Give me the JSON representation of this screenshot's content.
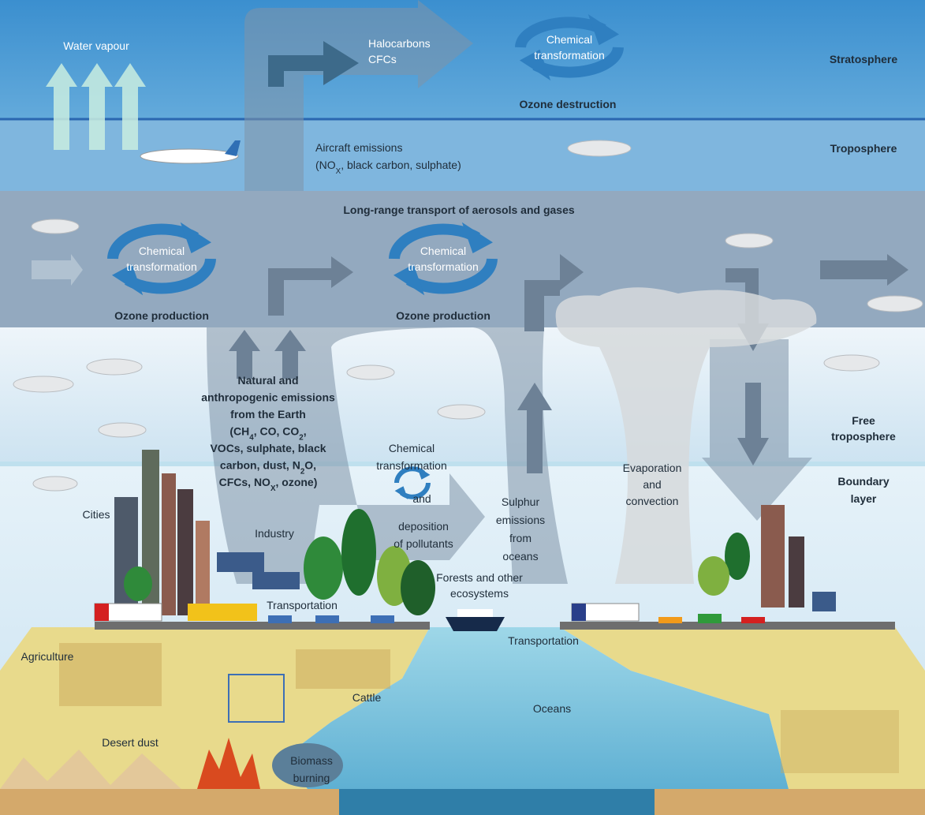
{
  "labels": {
    "water_vapour": [
      "Water vapour"
    ],
    "halocarbons": [
      "Halocarbons",
      "CFCs"
    ],
    "strat_chemical": [
      "Chemical",
      "transformation"
    ],
    "ozone_destruction": [
      "Ozone destruction"
    ],
    "stratosphere": [
      "Stratosphere"
    ],
    "aircraft": [
      "Aircraft emissions",
      [
        "(NO",
        "X",
        ", black carbon, sulphate)"
      ]
    ],
    "troposphere": [
      "Troposphere"
    ],
    "long_range": [
      "Long-range transport of aerosols and gases"
    ],
    "left_chemical": [
      "Chemical",
      "transformation"
    ],
    "left_ozone": [
      "Ozone production"
    ],
    "mid_chemical": [
      "Chemical",
      "transformation"
    ],
    "mid_ozone": [
      "Ozone production"
    ],
    "emissions": [
      "Natural and",
      "anthropogenic emissions",
      "from the Earth",
      [
        "(CH",
        "4",
        ", CO, CO",
        "2",
        ","
      ],
      "VOCs, sulphate, black",
      [
        "carbon, dust, N",
        "2",
        "O,"
      ],
      [
        "CFCs, NO",
        "X",
        ", ozone)"
      ]
    ],
    "low_chemical": [
      "Chemical",
      "transformation"
    ],
    "and": [
      "and"
    ],
    "deposition": [
      "deposition",
      "of pollutants"
    ],
    "sulphur": [
      "Sulphur",
      "emissions",
      "from",
      "oceans"
    ],
    "evaporation": [
      "Evaporation",
      "and",
      "convection"
    ],
    "free_troposphere": [
      "Free",
      "troposphere"
    ],
    "boundary_layer": [
      "Boundary",
      "layer"
    ],
    "cities": [
      "Cities"
    ],
    "industry": [
      "Industry"
    ],
    "forests": [
      "Forests and other",
      "ecosystems"
    ],
    "transportation_land": [
      "Transportation"
    ],
    "transportation_sea": [
      "Transportation"
    ],
    "agriculture": [
      "Agriculture"
    ],
    "cattle": [
      "Cattle"
    ],
    "oceans": [
      "Oceans"
    ],
    "desert_dust": [
      "Desert dust"
    ],
    "biomass": [
      "Biomass",
      "burning"
    ]
  }
}
